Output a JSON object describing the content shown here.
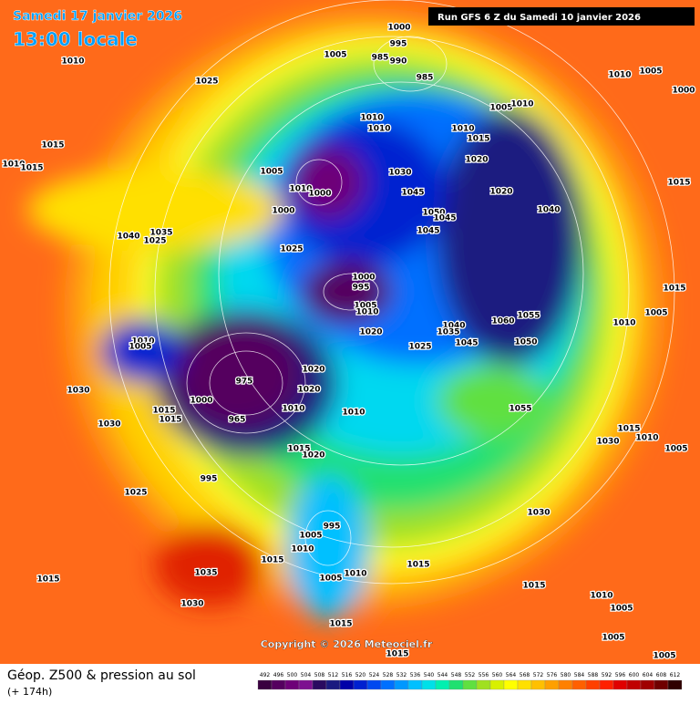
{
  "header": {
    "date": "Samedi 17 janvier 2026",
    "time": "13:00 locale",
    "run": "Run GFS 6 Z du Samedi 10 janvier 2026"
  },
  "footer": {
    "copyright": "Copyright © 2026 Meteociel.fr",
    "title": "Géop. Z500 & pression au sol",
    "lead": "(+ 174h)"
  },
  "scale": {
    "values": [
      492,
      496,
      500,
      504,
      508,
      512,
      516,
      520,
      524,
      528,
      532,
      536,
      540,
      544,
      548,
      552,
      556,
      560,
      564,
      568,
      572,
      576,
      580,
      584,
      588,
      592,
      596,
      600,
      604,
      608,
      612
    ],
    "colors": [
      "#3a0040",
      "#55005f",
      "#6e0078",
      "#7d1090",
      "#2a0a60",
      "#1a1a80",
      "#0000a8",
      "#0020d0",
      "#0048f0",
      "#0070ff",
      "#0098ff",
      "#00c0ff",
      "#00e0e8",
      "#00f0b0",
      "#20e070",
      "#60e040",
      "#a0e020",
      "#d8f000",
      "#ffff00",
      "#ffe000",
      "#ffc000",
      "#ffa000",
      "#ff8000",
      "#ff6000",
      "#ff4000",
      "#ff2000",
      "#e00000",
      "#c00000",
      "#a00000",
      "#700000",
      "#300000"
    ]
  },
  "isobars": [
    1000,
    995,
    1005,
    985,
    990,
    985,
    1010,
    1025,
    1010,
    1005,
    1000,
    1005,
    1010,
    1010,
    1010,
    1010,
    1015,
    1015,
    1010,
    1015,
    1020,
    1005,
    1030,
    1010,
    1000,
    1045,
    1020,
    1015,
    1040,
    1000,
    1050,
    1045,
    1040,
    1035,
    1025,
    1045,
    1025,
    1000,
    995,
    1015,
    1005,
    1010,
    1005,
    1055,
    1060,
    1010,
    1040,
    1035,
    1020,
    1010,
    1005,
    1050,
    1045,
    1025,
    1020,
    975,
    1020,
    1030,
    1000,
    1010,
    1015,
    1010,
    1055,
    965,
    1015,
    1030,
    1015,
    1010,
    1030,
    1015,
    1005,
    1020,
    995,
    1025,
    1030,
    995,
    1005,
    1010,
    1015,
    1035,
    1005,
    1010,
    1015,
    1015,
    1015,
    1030,
    1010,
    1015,
    1005,
    1005,
    1015,
    1005
  ]
}
